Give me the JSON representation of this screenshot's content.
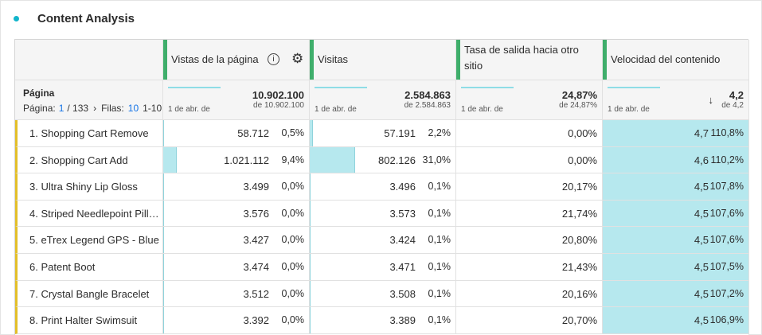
{
  "panel": {
    "title": "Content Analysis"
  },
  "table": {
    "dimension": {
      "label": "Página",
      "page_label": "Página:",
      "page": "1",
      "page_total": "/ 133",
      "rows_label": "Filas:",
      "rows": "10",
      "range": "1-10"
    },
    "columns": [
      {
        "label": "Vistas de la página",
        "total": "10.902.100",
        "total_sub": "de 10.902.100",
        "sparkline_label": "1 de abr. de"
      },
      {
        "label": "Visitas",
        "total": "2.584.863",
        "total_sub": "de 2.584.863",
        "sparkline_label": "1 de abr. de"
      },
      {
        "label": "Tasa de salida hacia otro sitio",
        "total": "24,87%",
        "total_sub": "de 24,87%",
        "sparkline_label": "1 de abr. de"
      },
      {
        "label": "Velocidad del contenido",
        "total": "4,2",
        "total_sub": "de 4,2",
        "sparkline_label": "1 de abr. de"
      }
    ],
    "rows": [
      {
        "label": "1. Shopping Cart Remove",
        "cells": [
          [
            "58.712",
            "0,5%"
          ],
          [
            "57.191",
            "2,2%"
          ],
          [
            "0,00%"
          ],
          [
            "4,7",
            "110,8%"
          ]
        ]
      },
      {
        "label": "2. Shopping Cart Add",
        "cells": [
          [
            "1.021.112",
            "9,4%"
          ],
          [
            "802.126",
            "31,0%"
          ],
          [
            "0,00%"
          ],
          [
            "4,6",
            "110,2%"
          ]
        ]
      },
      {
        "label": "3. Ultra Shiny Lip Gloss",
        "cells": [
          [
            "3.499",
            "0,0%"
          ],
          [
            "3.496",
            "0,1%"
          ],
          [
            "20,17%"
          ],
          [
            "4,5",
            "107,8%"
          ]
        ]
      },
      {
        "label": "4. Striped Needlepoint Pill…",
        "cells": [
          [
            "3.576",
            "0,0%"
          ],
          [
            "3.573",
            "0,1%"
          ],
          [
            "21,74%"
          ],
          [
            "4,5",
            "107,6%"
          ]
        ]
      },
      {
        "label": "5. eTrex Legend GPS - Blue",
        "cells": [
          [
            "3.427",
            "0,0%"
          ],
          [
            "3.424",
            "0,1%"
          ],
          [
            "20,80%"
          ],
          [
            "4,5",
            "107,6%"
          ]
        ]
      },
      {
        "label": "6. Patent Boot",
        "cells": [
          [
            "3.474",
            "0,0%"
          ],
          [
            "3.471",
            "0,1%"
          ],
          [
            "21,43%"
          ],
          [
            "4,5",
            "107,5%"
          ]
        ]
      },
      {
        "label": "7. Crystal Bangle Bracelet",
        "cells": [
          [
            "3.512",
            "0,0%"
          ],
          [
            "3.508",
            "0,1%"
          ],
          [
            "20,16%"
          ],
          [
            "4,5",
            "107,2%"
          ]
        ]
      },
      {
        "label": "8. Print Halter Swimsuit",
        "cells": [
          [
            "3.392",
            "0,0%"
          ],
          [
            "3.389",
            "0,1%"
          ],
          [
            "20,70%"
          ],
          [
            "4,5",
            "106,9%"
          ]
        ]
      }
    ]
  }
}
